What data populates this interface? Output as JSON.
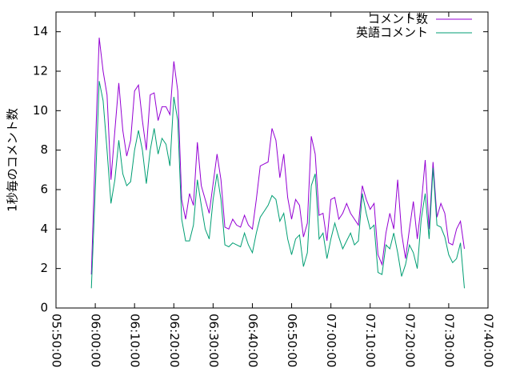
{
  "chart_data": {
    "type": "line",
    "ylabel": "1秒毎のコメント数",
    "x": [
      "05:59:00",
      "06:00:00",
      "06:01:00",
      "06:02:00",
      "06:03:00",
      "06:04:00",
      "06:05:00",
      "06:06:00",
      "06:07:00",
      "06:08:00",
      "06:09:00",
      "06:10:00",
      "06:11:00",
      "06:12:00",
      "06:13:00",
      "06:14:00",
      "06:15:00",
      "06:16:00",
      "06:17:00",
      "06:18:00",
      "06:19:00",
      "06:20:00",
      "06:21:00",
      "06:22:00",
      "06:23:00",
      "06:24:00",
      "06:25:00",
      "06:26:00",
      "06:27:00",
      "06:28:00",
      "06:29:00",
      "06:30:00",
      "06:31:00",
      "06:32:00",
      "06:33:00",
      "06:34:00",
      "06:35:00",
      "06:36:00",
      "06:37:00",
      "06:38:00",
      "06:39:00",
      "06:40:00",
      "06:41:00",
      "06:42:00",
      "06:43:00",
      "06:44:00",
      "06:45:00",
      "06:46:00",
      "06:47:00",
      "06:48:00",
      "06:49:00",
      "06:50:00",
      "06:51:00",
      "06:52:00",
      "06:53:00",
      "06:54:00",
      "06:55:00",
      "06:56:00",
      "06:57:00",
      "06:58:00",
      "06:59:00",
      "07:00:00",
      "07:01:00",
      "07:02:00",
      "07:03:00",
      "07:04:00",
      "07:05:00",
      "07:06:00",
      "07:07:00",
      "07:08:00",
      "07:09:00",
      "07:10:00",
      "07:11:00",
      "07:12:00",
      "07:13:00",
      "07:14:00",
      "07:15:00",
      "07:16:00",
      "07:17:00",
      "07:18:00",
      "07:19:00",
      "07:20:00",
      "07:21:00",
      "07:22:00",
      "07:23:00",
      "07:24:00",
      "07:25:00",
      "07:26:00",
      "07:27:00",
      "07:28:00",
      "07:29:00",
      "07:30:00",
      "07:31:00",
      "07:32:00",
      "07:33:00",
      "07:34:00"
    ],
    "series": [
      {
        "name": "コメント数",
        "color": "#9400d3",
        "values": [
          1.7,
          8,
          13.7,
          12,
          10.8,
          6.5,
          9,
          11.4,
          9,
          7.7,
          8.5,
          11,
          11.3,
          9.5,
          8,
          10.8,
          10.9,
          9.5,
          10.2,
          10.2,
          9.8,
          12.5,
          11,
          5.5,
          4.5,
          5.8,
          5.2,
          8.4,
          6.2,
          5.5,
          4.8,
          6.3,
          7.8,
          6.5,
          4.1,
          4,
          4.5,
          4.2,
          4.1,
          4.7,
          4.2,
          4,
          5.5,
          7.2,
          7.3,
          7.4,
          9.1,
          8.5,
          6.6,
          7.8,
          5.6,
          4.5,
          5.5,
          5.2,
          3.6,
          4.3,
          8.7,
          7.8,
          4.7,
          4.8,
          3.4,
          5.5,
          5.6,
          4.5,
          4.8,
          5.3,
          4.8,
          4.5,
          4.2,
          6.2,
          5.5,
          5,
          5.3,
          2.7,
          2.2,
          3.8,
          4.8,
          4,
          6.5,
          3.8,
          2.5,
          4,
          5.4,
          3.5,
          5.2,
          7.5,
          4,
          7.4,
          4.6,
          5.3,
          4.8,
          3.3,
          3.2,
          4,
          4.4,
          3
        ]
      },
      {
        "name": "英語コメント",
        "color": "#009e73",
        "values": [
          1,
          6,
          11.5,
          10.5,
          8,
          5.3,
          6.5,
          8.5,
          6.8,
          6.2,
          6.4,
          8,
          9,
          8,
          6.3,
          8,
          9.1,
          7.8,
          8.6,
          8.3,
          7.2,
          10.7,
          9.5,
          4.5,
          3.4,
          3.4,
          4.2,
          6.5,
          5.2,
          4,
          3.5,
          5.5,
          6.8,
          5.5,
          3.2,
          3.1,
          3.3,
          3.2,
          3.1,
          3.8,
          3.2,
          2.8,
          3.8,
          4.6,
          4.9,
          5.2,
          5.7,
          5.5,
          4.4,
          4.8,
          3.5,
          2.7,
          3.5,
          3.7,
          2.1,
          2.8,
          6.2,
          6.8,
          3.5,
          3.8,
          2.5,
          3.5,
          4.3,
          3.6,
          3,
          3.4,
          3.8,
          3.2,
          3.4,
          5.8,
          4.8,
          4,
          4.2,
          1.8,
          1.7,
          3.2,
          3,
          3.8,
          2.8,
          1.6,
          2.2,
          3.2,
          2.8,
          2,
          4.5,
          5.8,
          3.5,
          7.1,
          4.2,
          4.1,
          3.6,
          2.7,
          2.3,
          2.5,
          3.3,
          1
        ]
      }
    ],
    "xlim": [
      "05:50:00",
      "07:40:00"
    ],
    "xticks": [
      "05:50:00",
      "06:00:00",
      "06:10:00",
      "06:20:00",
      "06:30:00",
      "06:40:00",
      "06:50:00",
      "07:00:00",
      "07:10:00",
      "07:20:00",
      "07:30:00",
      "07:40:00"
    ],
    "ylim": [
      0,
      15
    ],
    "yticks": [
      0,
      2,
      4,
      6,
      8,
      10,
      12,
      14
    ],
    "legend": "upper-right"
  }
}
